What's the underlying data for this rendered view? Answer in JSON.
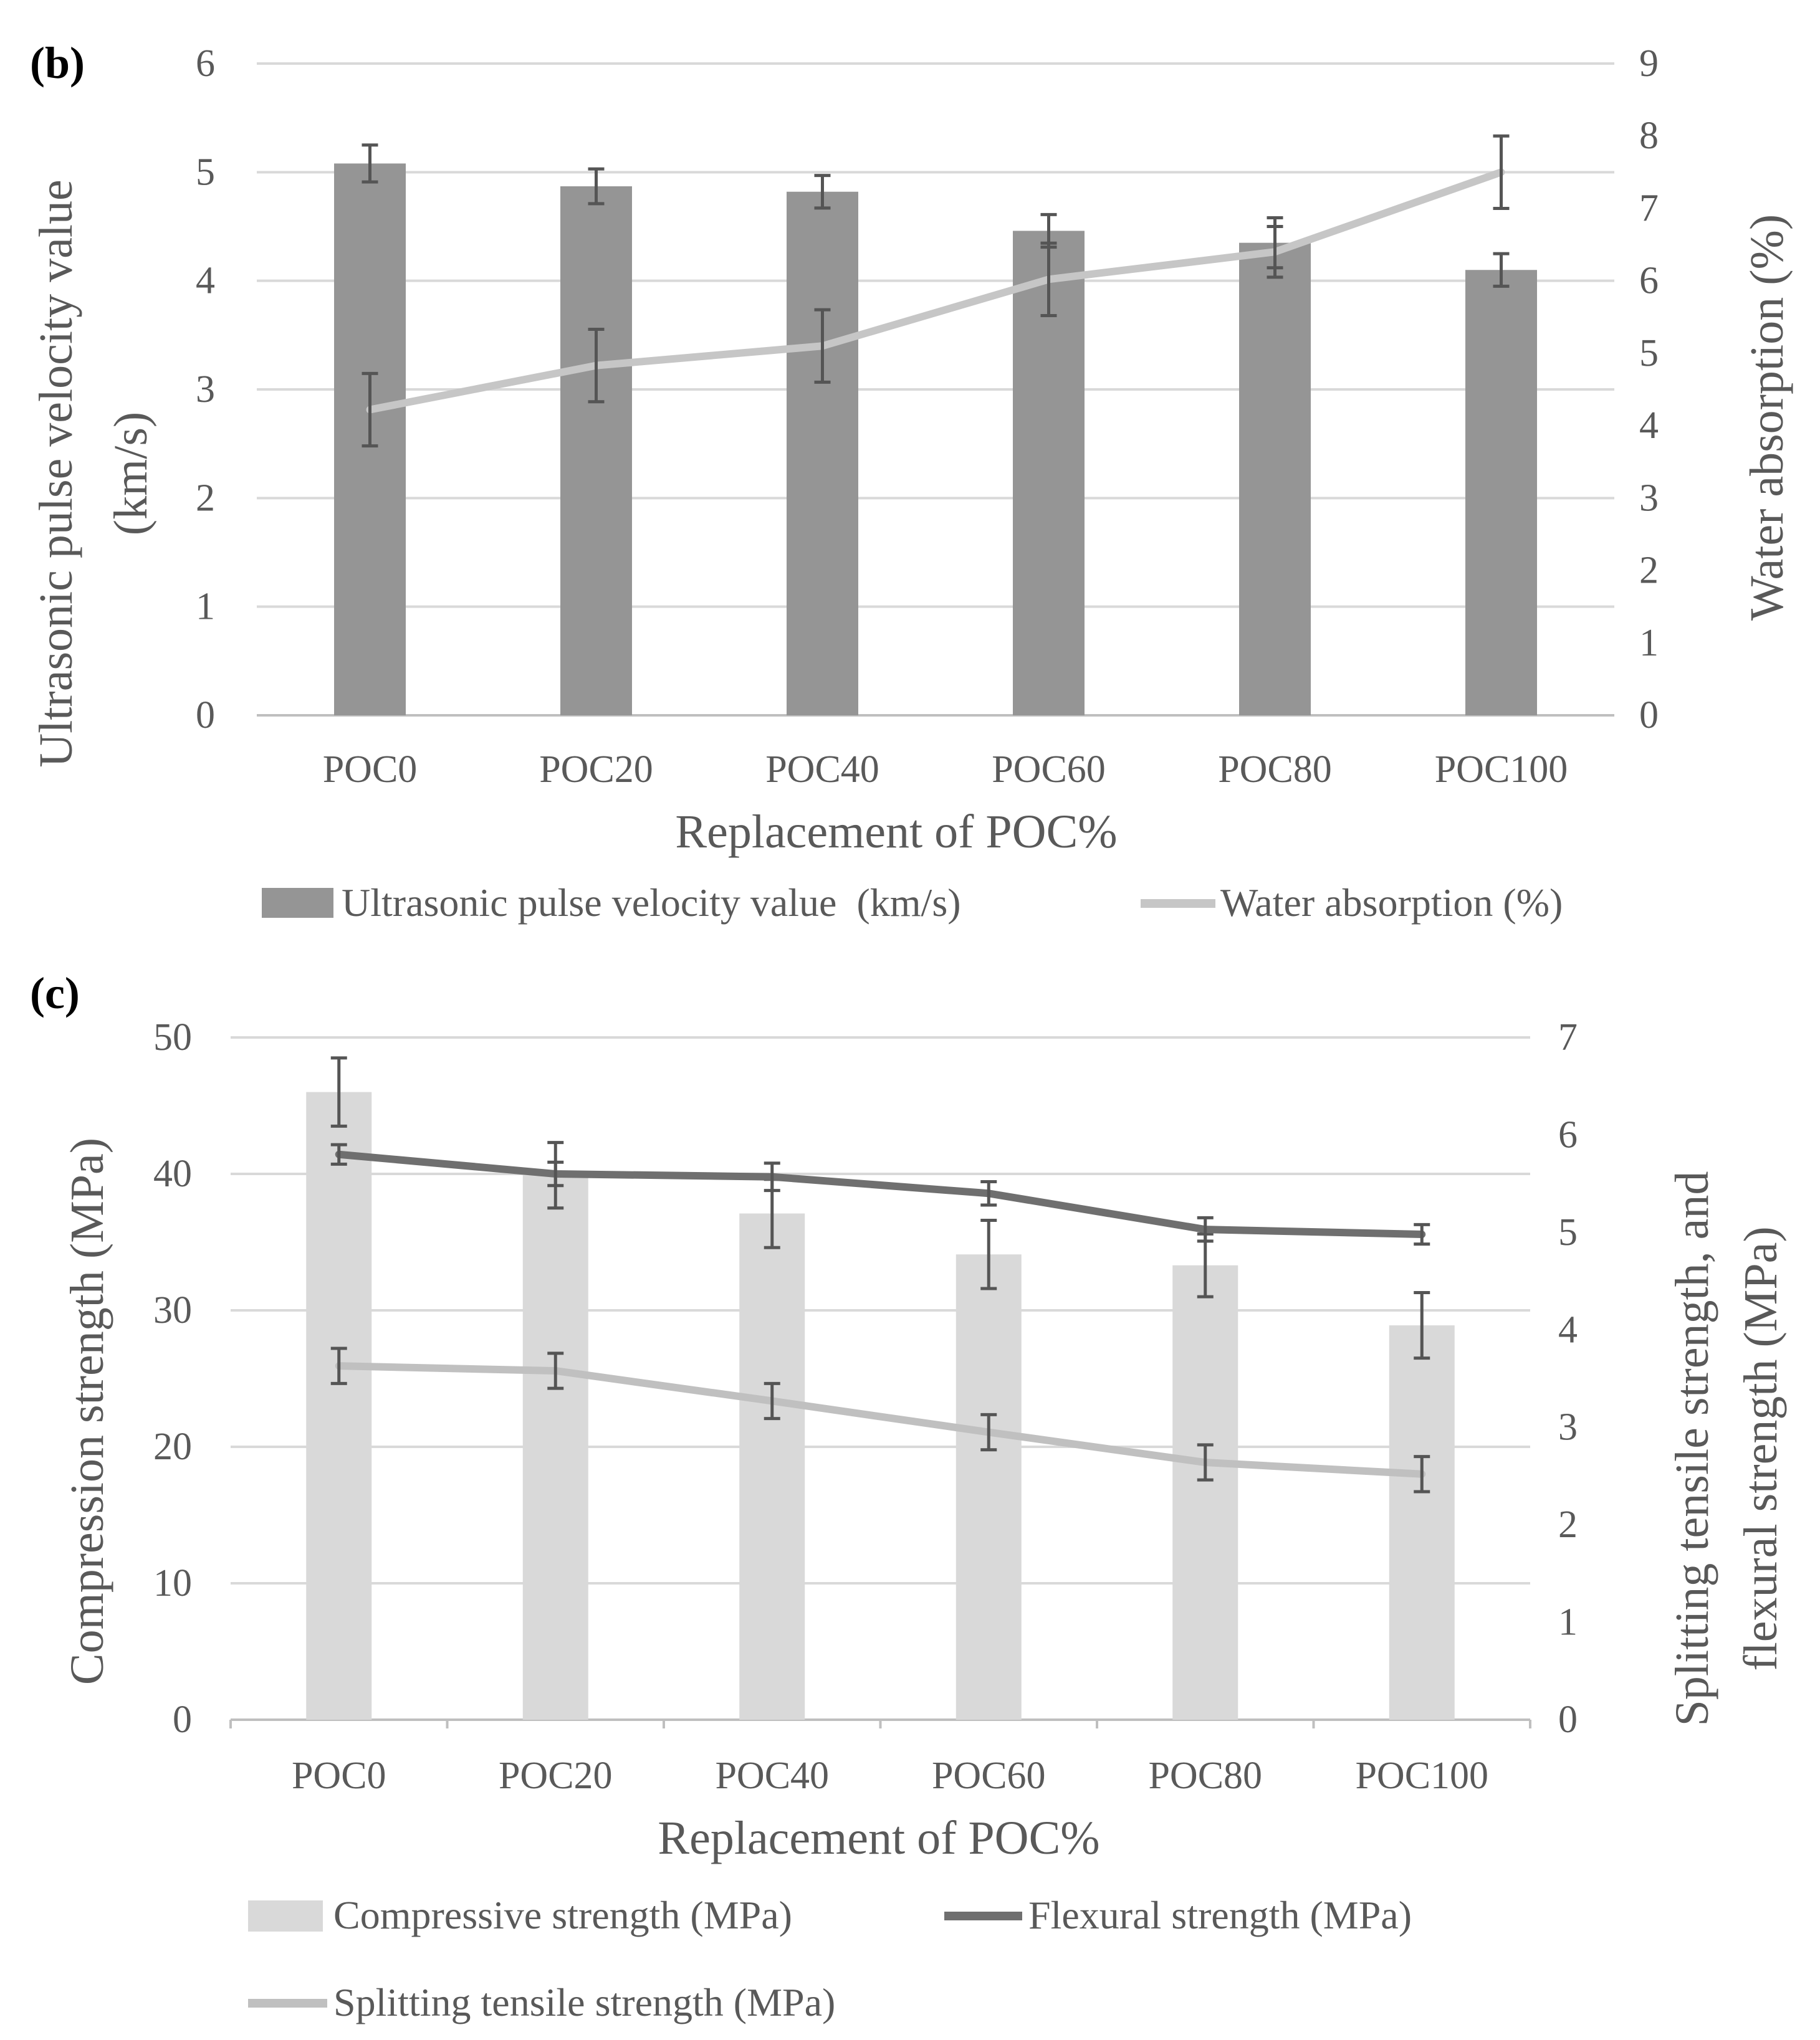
{
  "chart_data": [
    {
      "panel": "(b)",
      "type": "bar",
      "categories": [
        "POC0",
        "POC20",
        "POC40",
        "POC60",
        "POC80",
        "POC100"
      ],
      "xlabel": "Replacement of POC%",
      "ylabel_left": [
        "Ultrasonic pulse velocity value",
        "(km/s)"
      ],
      "ylabel_right": "Water absorption (%)",
      "ylim_left": [
        0,
        6
      ],
      "ylim_right": [
        0,
        9
      ],
      "yticks_left": [
        "0",
        "1",
        "2",
        "3",
        "4",
        "5",
        "6"
      ],
      "yticks_right": [
        "0",
        "1",
        "2",
        "3",
        "4",
        "5",
        "6",
        "7",
        "8",
        "9"
      ],
      "grid": true,
      "legend_position": "bottom",
      "series": [
        {
          "name": "Ultrasonic pulse velocity value  (km/s)",
          "kind": "bar",
          "axis": "left",
          "color": "#959595",
          "values": [
            5.08,
            4.87,
            4.82,
            4.46,
            4.35,
            4.1
          ],
          "errors": [
            0.17,
            0.16,
            0.15,
            0.15,
            0.23,
            0.15
          ]
        },
        {
          "name": "Water absorption (%)",
          "kind": "line",
          "axis": "right",
          "color": "#c6c6c6",
          "values": [
            4.22,
            4.83,
            5.1,
            6.02,
            6.4,
            7.5
          ],
          "errors": [
            0.5,
            0.5,
            0.5,
            0.5,
            0.35,
            0.5
          ]
        }
      ]
    },
    {
      "panel": "(c)",
      "type": "bar",
      "categories": [
        "POC0",
        "POC20",
        "POC40",
        "POC60",
        "POC80",
        "POC100"
      ],
      "xlabel": "Replacement of POC%",
      "ylabel_left": [
        "Compression strength (MPa)"
      ],
      "ylabel_right": [
        "Splitting tensile strength, and",
        "flexural strength (MPa)"
      ],
      "ylim_left": [
        0,
        50
      ],
      "ylim_right": [
        0,
        7
      ],
      "yticks_left": [
        "0",
        "10",
        "20",
        "30",
        "40",
        "50"
      ],
      "yticks_right": [
        "0",
        "1",
        "2",
        "3",
        "4",
        "5",
        "6",
        "7"
      ],
      "grid": true,
      "legend_position": "bottom",
      "series": [
        {
          "name": "Compressive strength (MPa)",
          "kind": "bar",
          "axis": "left",
          "color": "#d9d9d9",
          "values": [
            46,
            39.9,
            37.1,
            34.1,
            33.3,
            28.9
          ],
          "errors": [
            2.5,
            2.4,
            2.5,
            2.5,
            2.3,
            2.4
          ]
        },
        {
          "name": "Flexural strength (MPa)",
          "kind": "line",
          "axis": "right",
          "color": "#6f6f6f",
          "values": [
            5.8,
            5.6,
            5.57,
            5.4,
            5.03,
            4.98
          ],
          "errors": [
            0.1,
            0.12,
            0.14,
            0.12,
            0.12,
            0.1
          ]
        },
        {
          "name": "Splitting tensile strength (MPa)",
          "kind": "line",
          "axis": "right",
          "color": "#c0c0c0",
          "values": [
            3.63,
            3.58,
            3.27,
            2.95,
            2.64,
            2.52
          ],
          "errors": [
            0.18,
            0.18,
            0.18,
            0.18,
            0.18,
            0.18
          ]
        }
      ]
    }
  ]
}
